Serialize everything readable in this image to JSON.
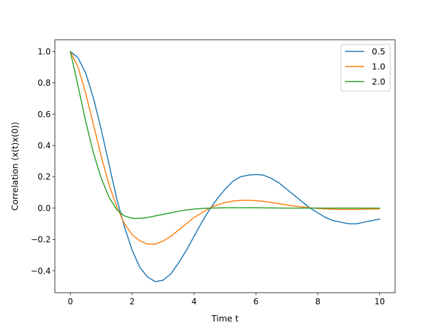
{
  "chart_data": {
    "type": "line",
    "title": "",
    "xlabel": "Time t",
    "ylabel": "Correlation ⟨x(t)x(0)⟩",
    "xlim": [
      -0.5,
      10.5
    ],
    "ylim": [
      -0.54,
      1.075
    ],
    "xticks": [
      0,
      2,
      4,
      6,
      8,
      10
    ],
    "yticks": [
      -0.4,
      -0.2,
      0.0,
      0.2,
      0.4,
      0.6,
      0.8,
      1.0
    ],
    "xtick_labels": [
      "0",
      "2",
      "4",
      "6",
      "8",
      "10"
    ],
    "ytick_labels": [
      "−0.4",
      "−0.2",
      "0.0",
      "0.2",
      "0.4",
      "0.6",
      "0.8",
      "1.0"
    ],
    "grid": false,
    "legend_position": "top-right",
    "series": [
      {
        "name": "0.5",
        "color": "#1f77b4",
        "x": [
          0,
          0.25,
          0.5,
          0.75,
          1,
          1.25,
          1.5,
          1.75,
          2,
          2.25,
          2.5,
          2.75,
          3,
          3.25,
          3.5,
          3.75,
          4,
          4.25,
          4.5,
          4.75,
          5,
          5.25,
          5.5,
          5.75,
          6,
          6.25,
          6.5,
          6.75,
          7,
          7.25,
          7.5,
          7.75,
          8,
          8.25,
          8.5,
          8.75,
          9,
          9.25,
          9.5,
          9.75,
          10
        ],
        "y": [
          1.0,
          0.96,
          0.86,
          0.7,
          0.5,
          0.28,
          0.06,
          -0.12,
          -0.27,
          -0.38,
          -0.44,
          -0.47,
          -0.46,
          -0.42,
          -0.35,
          -0.27,
          -0.18,
          -0.09,
          -0.01,
          0.06,
          0.12,
          0.17,
          0.2,
          0.21,
          0.215,
          0.21,
          0.19,
          0.16,
          0.12,
          0.08,
          0.04,
          0.0,
          -0.03,
          -0.06,
          -0.08,
          -0.09,
          -0.1,
          -0.1,
          -0.09,
          -0.08,
          -0.07
        ]
      },
      {
        "name": "1.0",
        "color": "#ff7f0e",
        "x": [
          0,
          0.25,
          0.5,
          0.75,
          1,
          1.25,
          1.5,
          1.75,
          2,
          2.25,
          2.5,
          2.75,
          3,
          3.25,
          3.5,
          3.75,
          4,
          4.25,
          4.5,
          4.75,
          5,
          5.25,
          5.5,
          5.75,
          6,
          6.25,
          6.5,
          6.75,
          7,
          7.25,
          7.5,
          7.75,
          8,
          8.25,
          8.5,
          8.75,
          9,
          9.25,
          9.5,
          9.75,
          10
        ],
        "y": [
          1.0,
          0.9,
          0.73,
          0.53,
          0.33,
          0.15,
          0.01,
          -0.1,
          -0.17,
          -0.21,
          -0.23,
          -0.23,
          -0.21,
          -0.18,
          -0.14,
          -0.1,
          -0.06,
          -0.03,
          0.0,
          0.02,
          0.035,
          0.045,
          0.05,
          0.05,
          0.048,
          0.043,
          0.036,
          0.028,
          0.02,
          0.013,
          0.007,
          0.002,
          -0.002,
          -0.005,
          -0.007,
          -0.008,
          -0.008,
          -0.008,
          -0.007,
          -0.006,
          -0.005
        ]
      },
      {
        "name": "2.0",
        "color": "#2ca02c",
        "x": [
          0,
          0.25,
          0.5,
          0.75,
          1,
          1.25,
          1.5,
          1.75,
          2,
          2.25,
          2.5,
          2.75,
          3,
          3.25,
          3.5,
          3.75,
          4,
          4.25,
          4.5,
          4.75,
          5,
          5.5,
          6,
          6.5,
          7,
          7.5,
          8,
          8.5,
          9,
          9.5,
          10
        ],
        "y": [
          1.0,
          0.78,
          0.55,
          0.35,
          0.19,
          0.07,
          -0.01,
          -0.05,
          -0.065,
          -0.065,
          -0.06,
          -0.05,
          -0.04,
          -0.03,
          -0.02,
          -0.012,
          -0.006,
          -0.002,
          0.0,
          0.001,
          0.002,
          0.002,
          0.002,
          0.001,
          0.0,
          0.0,
          0.0,
          0.0,
          0.0,
          0.0,
          0.0
        ]
      }
    ]
  }
}
